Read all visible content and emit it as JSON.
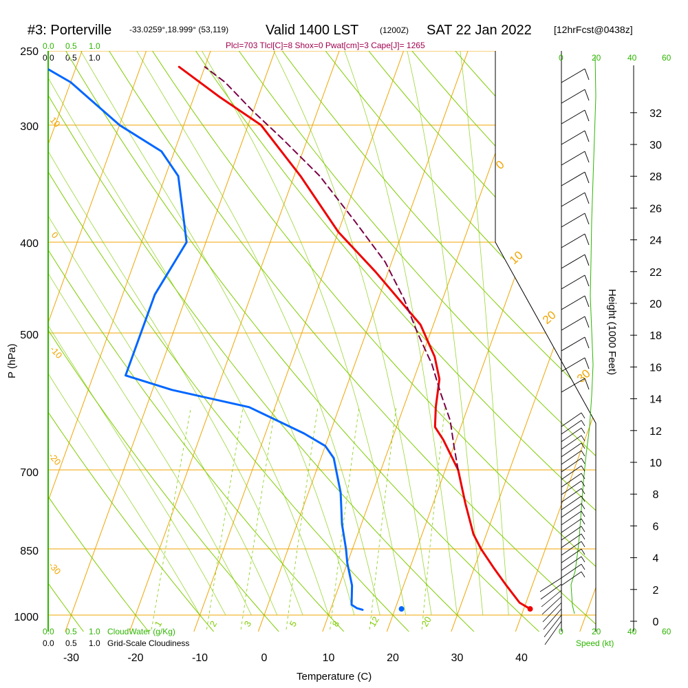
{
  "header": {
    "station": "#3: Porterville",
    "coords": "-33.0259°,18.999° (53,119)",
    "valid": "Valid 1400 LST",
    "utc": "(1200Z)",
    "date": "SAT 22 Jan 2022",
    "forecast": "[12hrFcst@0438z]",
    "indices": "Plcl=703 Tlcl[C]=8 Shox=0 Pwat[cm]=3 Cape[J]= 1265"
  },
  "cloud_scale": {
    "top_green": [
      "0.0",
      "0.5",
      "1.0"
    ],
    "top_black": [
      "0.0",
      "0.5",
      "1.0"
    ],
    "bottom_green": [
      "0.0",
      "0.5",
      "1.0"
    ],
    "bottom_green_label": "CloudWater (g/Kg)",
    "bottom_black": [
      "0.0",
      "0.5",
      "1.0"
    ],
    "bottom_black_label": "Grid-Scale Cloudiness"
  },
  "speed_scale": {
    "top": [
      "0",
      "20",
      "40",
      "60"
    ],
    "bottom": [
      "0",
      "20",
      "40",
      "60"
    ],
    "label": "Speed (kt)"
  },
  "colors": {
    "isotherm": "#f0a500",
    "dry_adiabat": "#7fcc00",
    "temperature": "#ee0000",
    "dewpoint": "#0066ff",
    "parcel": "#7a0045",
    "green_text": "#2db500"
  },
  "chart_data": {
    "type": "line",
    "subtype": "skew-T log-P sounding",
    "xlabel": "Temperature (C)",
    "ylabel": "P (hPa)",
    "y2label": "Height (1000 Feet)",
    "xticks": [
      "-30",
      "-20",
      "-10",
      "0",
      "10",
      "20",
      "30",
      "40"
    ],
    "pressure_ticks": [
      "250",
      "300",
      "400",
      "500",
      "700",
      "850",
      "1000"
    ],
    "height_ticks": [
      "0",
      "2",
      "4",
      "6",
      "8",
      "10",
      "12",
      "14",
      "16",
      "18",
      "20",
      "22",
      "24",
      "26",
      "28",
      "30",
      "32"
    ],
    "isotherm_labels": [
      "10",
      "0",
      "-10",
      "-20",
      "-30"
    ],
    "right_labels": [
      "0",
      "10",
      "20",
      "30"
    ],
    "mixing_ratio_labels": [
      "1",
      "2",
      "3",
      "5",
      "8",
      "12",
      "20"
    ],
    "series": [
      {
        "name": "Temperature",
        "points": [
          [
            41,
            985
          ],
          [
            39,
            970
          ],
          [
            36,
            930
          ],
          [
            33,
            890
          ],
          [
            30,
            850
          ],
          [
            28,
            820
          ],
          [
            25,
            760
          ],
          [
            22,
            700
          ],
          [
            18,
            650
          ],
          [
            16,
            630
          ],
          [
            15,
            600
          ],
          [
            14,
            560
          ],
          [
            12,
            530
          ],
          [
            8,
            490
          ],
          [
            -2,
            430
          ],
          [
            -10,
            390
          ],
          [
            -19,
            340
          ],
          [
            -28,
            300
          ],
          [
            -36,
            280
          ],
          [
            -44,
            260
          ]
        ]
      },
      {
        "name": "Dewpoint",
        "points": [
          [
            15,
            987
          ],
          [
            14,
            983
          ],
          [
            13,
            975
          ],
          [
            12,
            930
          ],
          [
            10,
            880
          ],
          [
            9,
            850
          ],
          [
            7,
            800
          ],
          [
            5,
            740
          ],
          [
            2,
            680
          ],
          [
            0,
            660
          ],
          [
            -4,
            640
          ],
          [
            -14,
            600
          ],
          [
            -27,
            575
          ],
          [
            -35,
            555
          ],
          [
            -35,
            500
          ],
          [
            -35,
            455
          ],
          [
            -33,
            400
          ],
          [
            -38,
            340
          ],
          [
            -42,
            320
          ],
          [
            -50,
            300
          ],
          [
            -60,
            270
          ],
          [
            -65,
            260
          ]
        ]
      },
      {
        "name": "Parcel",
        "points": [
          [
            22,
            700
          ],
          [
            20,
            660
          ],
          [
            18,
            620
          ],
          [
            15,
            580
          ],
          [
            12,
            540
          ],
          [
            8,
            500
          ],
          [
            4,
            460
          ],
          [
            -1,
            420
          ],
          [
            -8,
            380
          ],
          [
            -16,
            340
          ],
          [
            -24,
            310
          ],
          [
            -30,
            290
          ],
          [
            -36,
            270
          ],
          [
            -40,
            260
          ]
        ]
      }
    ],
    "surface_dewpoint": [
      21,
      985
    ],
    "surface_temperature": [
      41,
      985
    ],
    "xlim": [
      -35,
      45
    ],
    "ylim": [
      1000,
      250
    ]
  }
}
